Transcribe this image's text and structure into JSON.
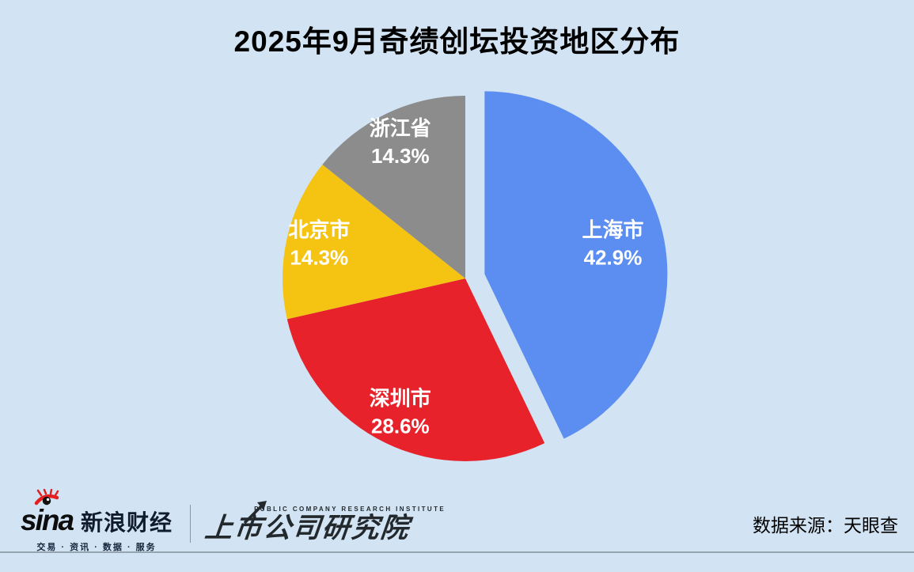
{
  "page": {
    "background": "#D2E4F3"
  },
  "chart_data": {
    "type": "pie",
    "title": "2025年9月奇绩创坛投资地区分布",
    "unit": "%",
    "start_angle_deg": 0,
    "direction": "clockwise",
    "labels_position": "inside",
    "label_color": "#FFFFFF",
    "legend": "none",
    "slices": [
      {
        "label": "上海市",
        "value": 42.9,
        "display": "42.9%",
        "color": "#5C8DF0",
        "exploded": true
      },
      {
        "label": "深圳市",
        "value": 28.6,
        "display": "28.6%",
        "color": "#E8222B",
        "exploded": false
      },
      {
        "label": "北京市",
        "value": 14.3,
        "display": "14.3%",
        "color": "#F5C413",
        "exploded": false
      },
      {
        "label": "浙江省",
        "value": 14.3,
        "display": "14.3%",
        "color": "#8C8C8C",
        "exploded": false
      }
    ]
  },
  "footer": {
    "sina": {
      "latin": "sina",
      "name": "新浪财经",
      "tagline": "交易 · 资讯 · 数据 · 服务"
    },
    "pcri": {
      "english": "PUBLIC COMPANY RESEARCH INSTITUTE",
      "name": "上市公司研究院"
    },
    "source": "数据来源：天眼查"
  }
}
